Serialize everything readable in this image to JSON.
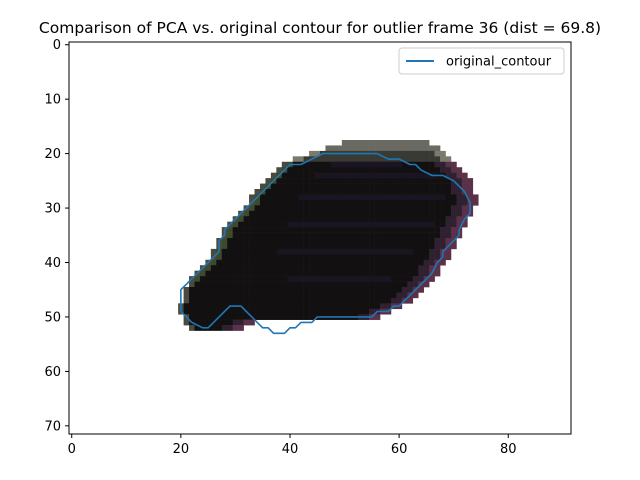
{
  "chart_data": {
    "type": "line",
    "title": "Comparison of PCA vs. original contour for outlier frame 36 (dist = 69.8)",
    "xlabel": "",
    "ylabel": "",
    "xlim": [
      -0.5,
      91.5
    ],
    "ylim": [
      71.5,
      -0.5
    ],
    "y_inverted": true,
    "grid": false,
    "legend_placement": "top-right",
    "x_ticks": [
      0,
      20,
      40,
      60,
      80
    ],
    "y_ticks": [
      0,
      10,
      20,
      30,
      40,
      50,
      60,
      70
    ],
    "background_image": "dark irregular blob (pixelated object mask, near-black with grey/purple edge pixels)",
    "series": [
      {
        "name": "original_contour",
        "color": "#1f77b4",
        "x": [
          52,
          56,
          58,
          59,
          60,
          62,
          63,
          64,
          66,
          68,
          70,
          72,
          73,
          73,
          72,
          71,
          71,
          70,
          69,
          68,
          68,
          67,
          66,
          65,
          64,
          62,
          61,
          60,
          59,
          58,
          56,
          55,
          50,
          46,
          45,
          44,
          42,
          41,
          40,
          39,
          37,
          36,
          35,
          34,
          33,
          32,
          31,
          30,
          29,
          28,
          27,
          26,
          25,
          24,
          22,
          21,
          20,
          20,
          20,
          21,
          22,
          23,
          24,
          25,
          26,
          27,
          27,
          28,
          28,
          29,
          30,
          31,
          32,
          33,
          34,
          35,
          36,
          37,
          38,
          39,
          40,
          42,
          44,
          46,
          48,
          52
        ],
        "y": [
          20,
          20,
          21,
          21,
          21,
          22,
          22,
          23,
          24,
          24,
          25,
          27,
          29,
          31,
          32,
          34,
          35,
          36,
          37,
          38,
          39,
          40,
          42,
          43,
          44,
          46,
          47,
          48,
          48,
          49,
          49,
          50,
          50,
          50,
          50,
          51,
          51,
          52,
          52,
          53,
          53,
          52,
          52,
          51,
          50,
          49,
          48,
          48,
          48,
          49,
          50,
          51,
          52,
          52,
          51,
          50,
          49,
          47,
          45,
          44,
          43,
          42,
          41,
          40,
          39,
          38,
          36,
          35,
          34,
          33,
          32,
          31,
          30,
          29,
          28,
          27,
          26,
          25,
          24,
          23,
          22,
          22,
          21,
          20,
          20,
          20
        ]
      }
    ]
  }
}
